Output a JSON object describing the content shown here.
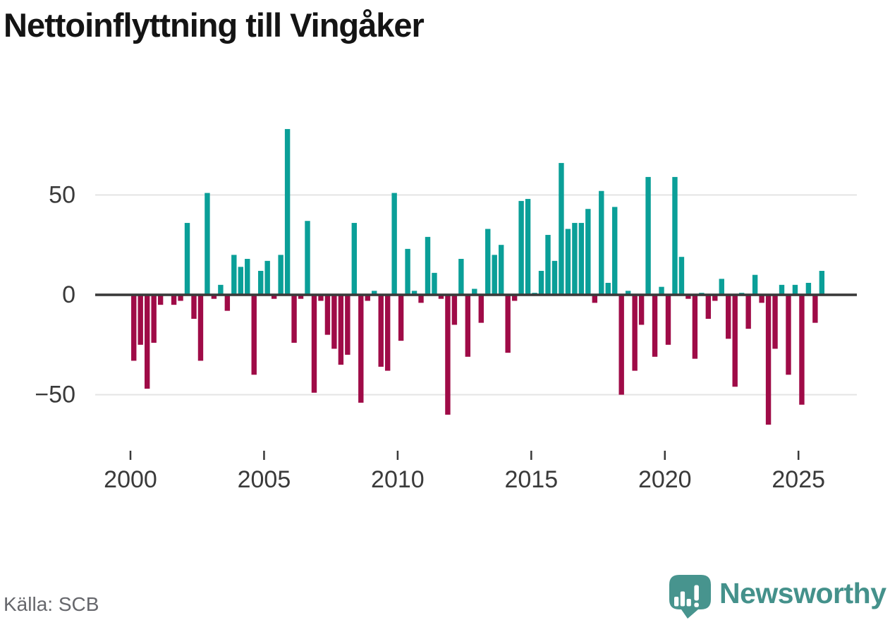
{
  "title": "Nettoinflyttning till Vingåker",
  "source": {
    "label": "Källa: SCB"
  },
  "branding": {
    "name": "Newsworthy",
    "logo_icon": "speech-bubble-bar-chart-icon"
  },
  "colors": {
    "positive_bar": "#0a9f98",
    "negative_bar": "#9f0b47",
    "zero_axis": "#3a3a3a",
    "gridline": "#e4e4e4",
    "tick_text": "#3a3a3a",
    "title_text": "#141414",
    "source_text": "#66676c",
    "brand_teal": "#44918b",
    "logo_mark_fill": "#47948e",
    "logo_glyph_fill": "#ffffff"
  },
  "chart_data": {
    "type": "bar",
    "title": "Nettoinflyttning till Vingåker",
    "xlabel": "",
    "ylabel": "",
    "frequency": "quarterly",
    "start_year": 2000,
    "x_ticks": [
      2000,
      2005,
      2010,
      2015,
      2020,
      2025
    ],
    "y_ticks": [
      -50,
      0,
      50
    ],
    "ylim": [
      -78,
      101
    ],
    "grid": "horizontal",
    "legend": "none",
    "series": [
      {
        "name": "Nettoinflyttning",
        "years": [
          2000,
          2001,
          2002,
          2003,
          2004,
          2005,
          2006,
          2007,
          2008,
          2009,
          2010,
          2011,
          2012,
          2013,
          2014,
          2015,
          2016,
          2017,
          2018,
          2019,
          2020,
          2021,
          2022,
          2023,
          2024,
          2025
        ],
        "values_by_year": [
          [
            -33,
            -25,
            -47,
            -24
          ],
          [
            -5,
            0,
            -5,
            -3
          ],
          [
            36,
            -12,
            -33,
            51
          ],
          [
            -2,
            5,
            -8,
            20
          ],
          [
            14,
            18,
            -40,
            12
          ],
          [
            17,
            -2,
            20,
            83
          ],
          [
            -24,
            -2,
            37,
            -49
          ],
          [
            -3,
            -20,
            -27,
            -35
          ],
          [
            -30,
            36,
            -54,
            -3
          ],
          [
            2,
            -36,
            -38,
            51
          ],
          [
            -23,
            23,
            2,
            -4
          ],
          [
            29,
            11,
            -2,
            -60
          ],
          [
            -15,
            18,
            -31,
            3
          ],
          [
            -14,
            33,
            20,
            25
          ],
          [
            -29,
            -3,
            47,
            48
          ],
          [
            1,
            12,
            30,
            17
          ],
          [
            66,
            33,
            36,
            36
          ],
          [
            43,
            -4,
            52,
            6
          ],
          [
            44,
            -50,
            2,
            -38
          ],
          [
            -15,
            59,
            -31,
            4
          ],
          [
            -25,
            59,
            19,
            -2
          ],
          [
            -32,
            1,
            -12,
            -3
          ],
          [
            8,
            -22,
            -46,
            1
          ],
          [
            -17,
            10,
            -4,
            -65
          ],
          [
            -27,
            5,
            -40,
            5
          ],
          [
            -55,
            6,
            -14,
            12
          ]
        ]
      }
    ]
  }
}
